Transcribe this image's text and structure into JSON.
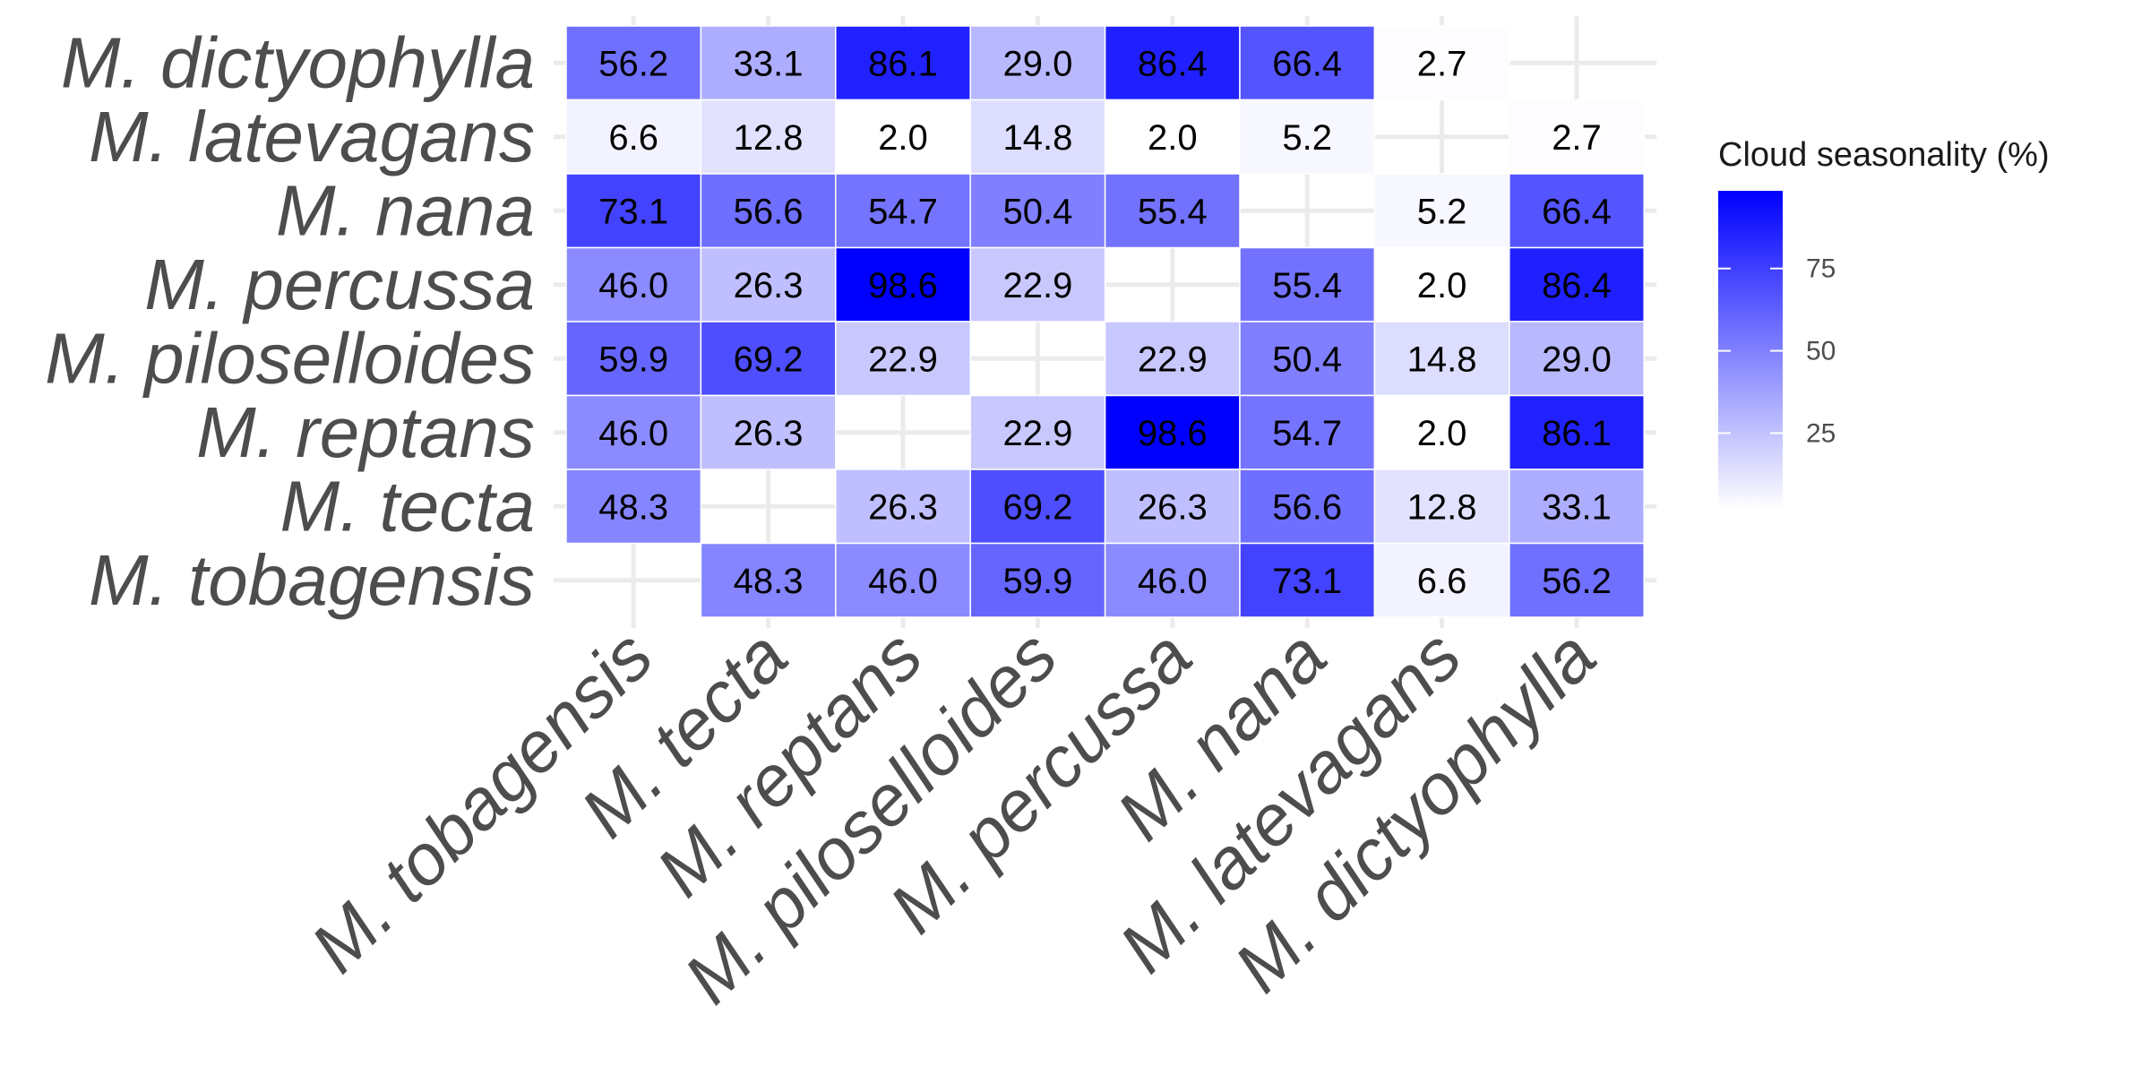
{
  "chart_data": {
    "type": "heatmap",
    "title": "",
    "xlabel": "",
    "ylabel": "",
    "x_categories": [
      "M. tobagensis",
      "M. tecta",
      "M. reptans",
      "M. piloselloides",
      "M. percussa",
      "M. nana",
      "M. latevagans",
      "M. dictyophylla"
    ],
    "y_categories": [
      "M. dictyophylla",
      "M. latevagans",
      "M. nana",
      "M. percussa",
      "M. piloselloides",
      "M. reptans",
      "M. tecta",
      "M. tobagensis"
    ],
    "values": [
      [
        56.2,
        33.1,
        86.1,
        29.0,
        86.4,
        66.4,
        2.7,
        null
      ],
      [
        6.6,
        12.8,
        2.0,
        14.8,
        2.0,
        5.2,
        null,
        2.7
      ],
      [
        73.1,
        56.6,
        54.7,
        50.4,
        55.4,
        null,
        5.2,
        66.4
      ],
      [
        46.0,
        26.3,
        98.6,
        22.9,
        null,
        55.4,
        2.0,
        86.4
      ],
      [
        59.9,
        69.2,
        22.9,
        null,
        22.9,
        50.4,
        14.8,
        29.0
      ],
      [
        46.0,
        26.3,
        null,
        22.9,
        98.6,
        54.7,
        2.0,
        86.1
      ],
      [
        48.3,
        null,
        26.3,
        69.2,
        26.3,
        56.6,
        12.8,
        33.1
      ],
      [
        null,
        48.3,
        46.0,
        59.9,
        46.0,
        73.1,
        6.6,
        56.2
      ]
    ],
    "value_labels": [
      [
        "56.2",
        "33.1",
        "86.1",
        "29.0",
        "86.4",
        "66.4",
        "2.7",
        ""
      ],
      [
        "6.6",
        "12.8",
        "2.0",
        "14.8",
        "2.0",
        "5.2",
        "",
        "2.7"
      ],
      [
        "73.1",
        "56.6",
        "54.7",
        "50.4",
        "55.4",
        "",
        "5.2",
        "66.4"
      ],
      [
        "46.0",
        "26.3",
        "98.6",
        "22.9",
        "",
        "55.4",
        "2.0",
        "86.4"
      ],
      [
        "59.9",
        "69.2",
        "22.9",
        "",
        "22.9",
        "50.4",
        "14.8",
        "29.0"
      ],
      [
        "46.0",
        "26.3",
        "",
        "22.9",
        "98.6",
        "54.7",
        "2.0",
        "86.1"
      ],
      [
        "48.3",
        "",
        "26.3",
        "69.2",
        "26.3",
        "56.6",
        "12.8",
        "33.1"
      ],
      [
        "",
        "48.3",
        "46.0",
        "59.9",
        "46.0",
        "73.1",
        "6.6",
        "56.2"
      ]
    ],
    "color_scale": {
      "low_color": "#ffffff",
      "high_color": "#0000ff",
      "domain": [
        2.0,
        98.6
      ]
    },
    "legend": {
      "title": "Cloud seasonality (%)",
      "ticks": [
        25,
        50,
        75
      ],
      "tick_labels": [
        "25",
        "50",
        "75"
      ],
      "placement": "right"
    },
    "grid": true
  }
}
